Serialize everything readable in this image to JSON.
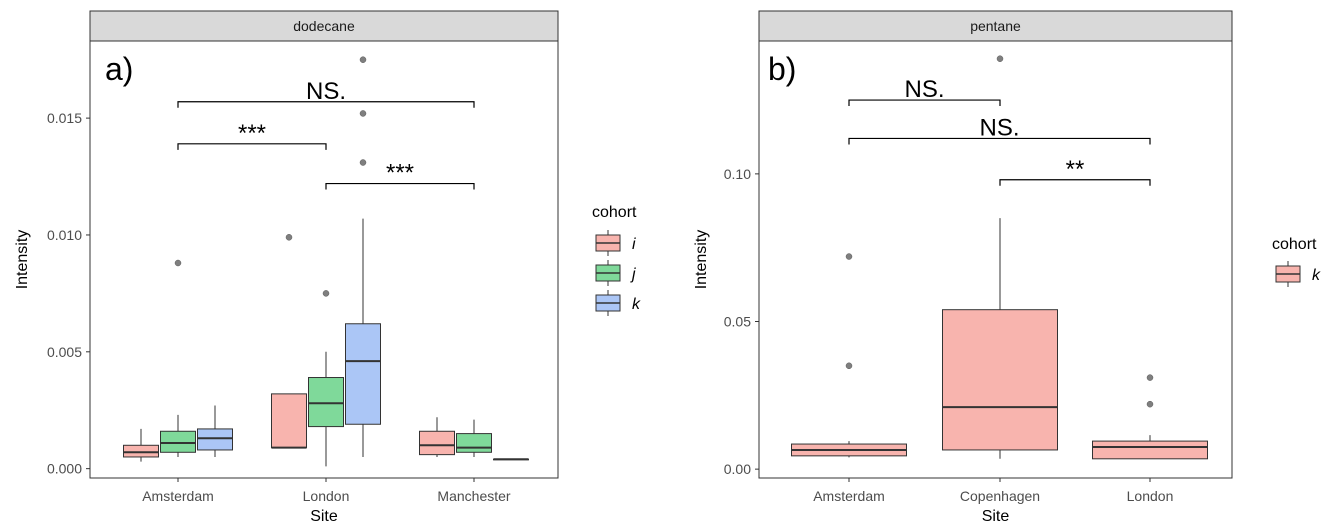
{
  "chart_data": [
    {
      "type": "box",
      "panel_tag": "a)",
      "strip_label": "dodecane",
      "xlabel": "Site",
      "ylabel": "Intensity",
      "ylim": [
        -0.0004,
        0.0183
      ],
      "yticks": [
        0.0,
        0.005,
        0.01,
        0.015
      ],
      "ytick_labels": [
        "0.000",
        "0.005",
        "0.010",
        "0.015"
      ],
      "categories": [
        "Amsterdam",
        "London",
        "Manchester"
      ],
      "legend": {
        "title": "cohort",
        "placement": "right",
        "entries": [
          "i",
          "j",
          "k"
        ]
      },
      "series": [
        {
          "name": "i",
          "color": "#F8B4AE",
          "boxes": [
            {
              "site": "Amsterdam",
              "lower": 0.0003,
              "q1": 0.0005,
              "median": 0.0007,
              "q3": 0.001,
              "upper": 0.0017,
              "outliers": []
            },
            {
              "site": "London",
              "lower": 0.0009,
              "q1": 0.0009,
              "median": 0.0009,
              "q3": 0.0032,
              "upper": 0.0032,
              "outliers": [
                0.0099
              ]
            },
            {
              "site": "Manchester",
              "lower": 0.0005,
              "q1": 0.0006,
              "median": 0.001,
              "q3": 0.0016,
              "upper": 0.0022,
              "outliers": []
            }
          ]
        },
        {
          "name": "j",
          "color": "#7FD99A",
          "boxes": [
            {
              "site": "Amsterdam",
              "lower": 0.0005,
              "q1": 0.0007,
              "median": 0.0011,
              "q3": 0.0016,
              "upper": 0.0023,
              "outliers": [
                0.0088
              ]
            },
            {
              "site": "London",
              "lower": 0.0001,
              "q1": 0.0018,
              "median": 0.0028,
              "q3": 0.0039,
              "upper": 0.005,
              "outliers": [
                0.0075
              ]
            },
            {
              "site": "Manchester",
              "lower": 0.0005,
              "q1": 0.0007,
              "median": 0.0009,
              "q3": 0.0015,
              "upper": 0.0021,
              "outliers": []
            }
          ]
        },
        {
          "name": "k",
          "color": "#ABC6F6",
          "boxes": [
            {
              "site": "Amsterdam",
              "lower": 0.0005,
              "q1": 0.0008,
              "median": 0.0013,
              "q3": 0.0017,
              "upper": 0.0027,
              "outliers": []
            },
            {
              "site": "London",
              "lower": 0.0005,
              "q1": 0.0019,
              "median": 0.0046,
              "q3": 0.0062,
              "upper": 0.0107,
              "outliers": [
                0.0131,
                0.0152,
                0.0175
              ]
            },
            {
              "site": "Manchester",
              "lower": 0.0004,
              "q1": 0.0004,
              "median": 0.0004,
              "q3": 0.0004,
              "upper": 0.0004,
              "outliers": []
            }
          ]
        }
      ],
      "brackets": [
        {
          "from": "Amsterdam",
          "to": "Manchester",
          "y": 0.0157,
          "label": "NS."
        },
        {
          "from": "Amsterdam",
          "to": "London",
          "y": 0.0139,
          "label": "***"
        },
        {
          "from": "London",
          "to": "Manchester",
          "y": 0.0122,
          "label": "***"
        }
      ]
    },
    {
      "type": "box",
      "panel_tag": "b)",
      "strip_label": "pentane",
      "xlabel": "Site",
      "ylabel": "Intensity",
      "ylim": [
        -0.003,
        0.145
      ],
      "yticks": [
        0.0,
        0.05,
        0.1
      ],
      "ytick_labels": [
        "0.00",
        "0.05",
        "0.10"
      ],
      "categories": [
        "Amsterdam",
        "Copenhagen",
        "London"
      ],
      "legend": {
        "title": "cohort",
        "placement": "right",
        "entries": [
          "k"
        ]
      },
      "series": [
        {
          "name": "k",
          "color": "#F8B4AE",
          "boxes": [
            {
              "site": "Amsterdam",
              "lower": 0.004,
              "q1": 0.0045,
              "median": 0.0065,
              "q3": 0.0085,
              "upper": 0.0095,
              "outliers": [
                0.035,
                0.072
              ]
            },
            {
              "site": "Copenhagen",
              "lower": 0.0035,
              "q1": 0.0065,
              "median": 0.021,
              "q3": 0.054,
              "upper": 0.085,
              "outliers": [
                0.139
              ]
            },
            {
              "site": "London",
              "lower": 0.0035,
              "q1": 0.0035,
              "median": 0.0075,
              "q3": 0.0095,
              "upper": 0.0115,
              "outliers": [
                0.022,
                0.031
              ]
            }
          ]
        }
      ],
      "brackets": [
        {
          "from": "Amsterdam",
          "to": "Copenhagen",
          "y": 0.125,
          "label": "NS."
        },
        {
          "from": "Amsterdam",
          "to": "London",
          "y": 0.112,
          "label": "NS."
        },
        {
          "from": "Copenhagen",
          "to": "London",
          "y": 0.098,
          "label": "**"
        }
      ]
    }
  ]
}
